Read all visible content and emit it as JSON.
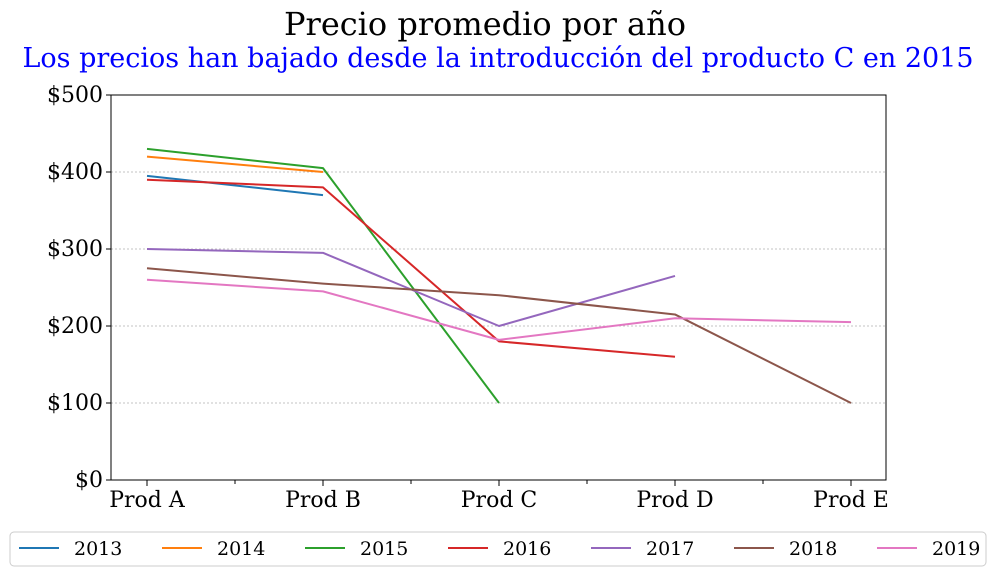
{
  "chart_data": {
    "type": "line",
    "title": "Precio promedio por año",
    "subtitle": "Los precios han bajado desde la introducción del producto C en 2015",
    "xlabel": "",
    "ylabel": "",
    "categories": [
      "Prod A",
      "Prod B",
      "Prod C",
      "Prod D",
      "Prod E"
    ],
    "ylim": [
      0,
      500
    ],
    "yticks": [
      0,
      100,
      200,
      300,
      400,
      500
    ],
    "ytick_labels": [
      "$0",
      "$100",
      "$200",
      "$300",
      "$400",
      "$500"
    ],
    "grid": "horizontal dashed",
    "legend_position": "bottom",
    "series": [
      {
        "name": "2013",
        "color": "#1f77b4",
        "values": [
          395,
          370,
          null,
          null,
          null
        ]
      },
      {
        "name": "2014",
        "color": "#ff7f0e",
        "values": [
          420,
          400,
          null,
          null,
          null
        ]
      },
      {
        "name": "2015",
        "color": "#2ca02c",
        "values": [
          430,
          405,
          100,
          null,
          null
        ]
      },
      {
        "name": "2016",
        "color": "#d62728",
        "values": [
          390,
          380,
          180,
          160,
          null
        ]
      },
      {
        "name": "2017",
        "color": "#9467bd",
        "values": [
          300,
          295,
          200,
          265,
          null
        ]
      },
      {
        "name": "2018",
        "color": "#8c564b",
        "values": [
          275,
          255,
          240,
          215,
          100
        ]
      },
      {
        "name": "2019",
        "color": "#e377c2",
        "values": [
          260,
          245,
          182,
          210,
          205
        ]
      }
    ]
  },
  "colors": {
    "title": "#000000",
    "subtitle": "#0000ff",
    "axis": "#000000",
    "grid": "#b0b0b0"
  }
}
